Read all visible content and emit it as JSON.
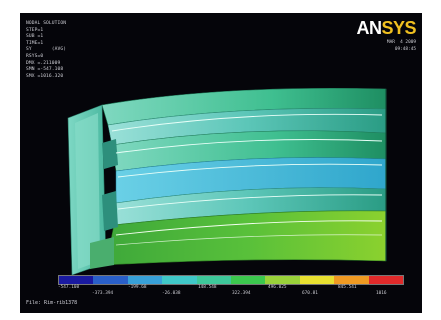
{
  "window": {
    "title": "ANSYS"
  },
  "readout": {
    "lines": [
      "NODAL SOLUTION",
      "STEP=1",
      "SUB =1",
      "TIME=1",
      "SY       (AVG)",
      "RSYS=0",
      "DMX =.211009",
      "SMN =-547.108",
      "SMX =1016.320"
    ]
  },
  "logo": {
    "an": "AN",
    "sys": "SYS"
  },
  "stamp": {
    "line1": "MAR  4 2009",
    "line2": "09:48:45"
  },
  "legend": {
    "colors": [
      "#1a1aa0",
      "#2a5fc8",
      "#38a0d8",
      "#40c8c8",
      "#3ec89a",
      "#3cc84e",
      "#9ad23a",
      "#e8e030",
      "#f09a22",
      "#e02a2a"
    ],
    "labels_top": [
      "-547.108",
      "-199.68",
      "148.548",
      "496.025",
      "845.541"
    ],
    "labels_bot": [
      "-373.394",
      "-26.038",
      "322.394",
      "670.81",
      "1016"
    ]
  },
  "footer": {
    "filename": "File: Rim-rib1378"
  }
}
